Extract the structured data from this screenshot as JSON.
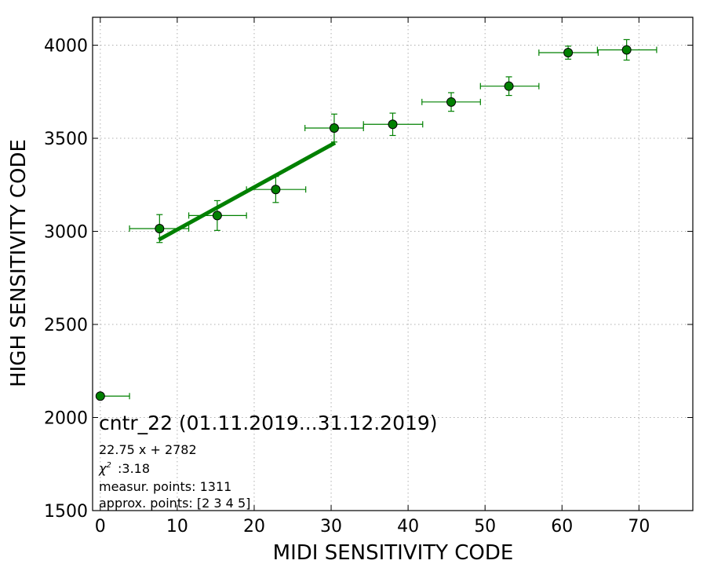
{
  "chart_data": {
    "type": "scatter",
    "title": "cntr_22 (01.11.2019...31.12.2019)",
    "xlabel": "MIDI SENSITIVITY CODE",
    "ylabel": "HIGH SENSITIVITY CODE",
    "xlim": [
      -1,
      77
    ],
    "ylim": [
      1500,
      4150
    ],
    "xticks": [
      0,
      10,
      20,
      30,
      40,
      50,
      60,
      70
    ],
    "yticks": [
      1500,
      2000,
      2500,
      3000,
      3500,
      4000
    ],
    "grid": true,
    "colors": {
      "points": "#008000",
      "edge": "#000000",
      "fit_line": "#008000",
      "grid": "#b0b0b0"
    },
    "points": [
      {
        "x": 0.0,
        "y": 2115,
        "xerr_minus": 0.0,
        "xerr_plus": 3.8,
        "yerr": 0
      },
      {
        "x": 7.7,
        "y": 3015,
        "xerr_minus": 3.9,
        "xerr_plus": 3.8,
        "yerr": 75
      },
      {
        "x": 15.2,
        "y": 3085,
        "xerr_minus": 3.7,
        "xerr_plus": 3.8,
        "yerr": 80
      },
      {
        "x": 22.8,
        "y": 3225,
        "xerr_minus": 3.8,
        "xerr_plus": 3.9,
        "yerr": 70
      },
      {
        "x": 30.4,
        "y": 3555,
        "xerr_minus": 3.8,
        "xerr_plus": 3.8,
        "yerr": 75
      },
      {
        "x": 38.0,
        "y": 3575,
        "xerr_minus": 3.8,
        "xerr_plus": 3.9,
        "yerr": 60
      },
      {
        "x": 45.6,
        "y": 3695,
        "xerr_minus": 3.8,
        "xerr_plus": 3.8,
        "yerr": 50
      },
      {
        "x": 53.1,
        "y": 3780,
        "xerr_minus": 3.7,
        "xerr_plus": 3.9,
        "yerr": 50
      },
      {
        "x": 60.8,
        "y": 3960,
        "xerr_minus": 3.8,
        "xerr_plus": 3.9,
        "yerr": 35
      },
      {
        "x": 68.4,
        "y": 3975,
        "xerr_minus": 3.8,
        "xerr_plus": 3.9,
        "yerr": 55
      }
    ],
    "fit": {
      "slope": 22.75,
      "intercept": 2782,
      "x_range": [
        7.6,
        30.5
      ]
    },
    "annotations": {
      "equation": "22.75 x + 2782",
      "chi2": ":3.18",
      "measur_points": "measur. points: 1311",
      "approx_points": "approx. points: [2 3 4 5]"
    }
  }
}
